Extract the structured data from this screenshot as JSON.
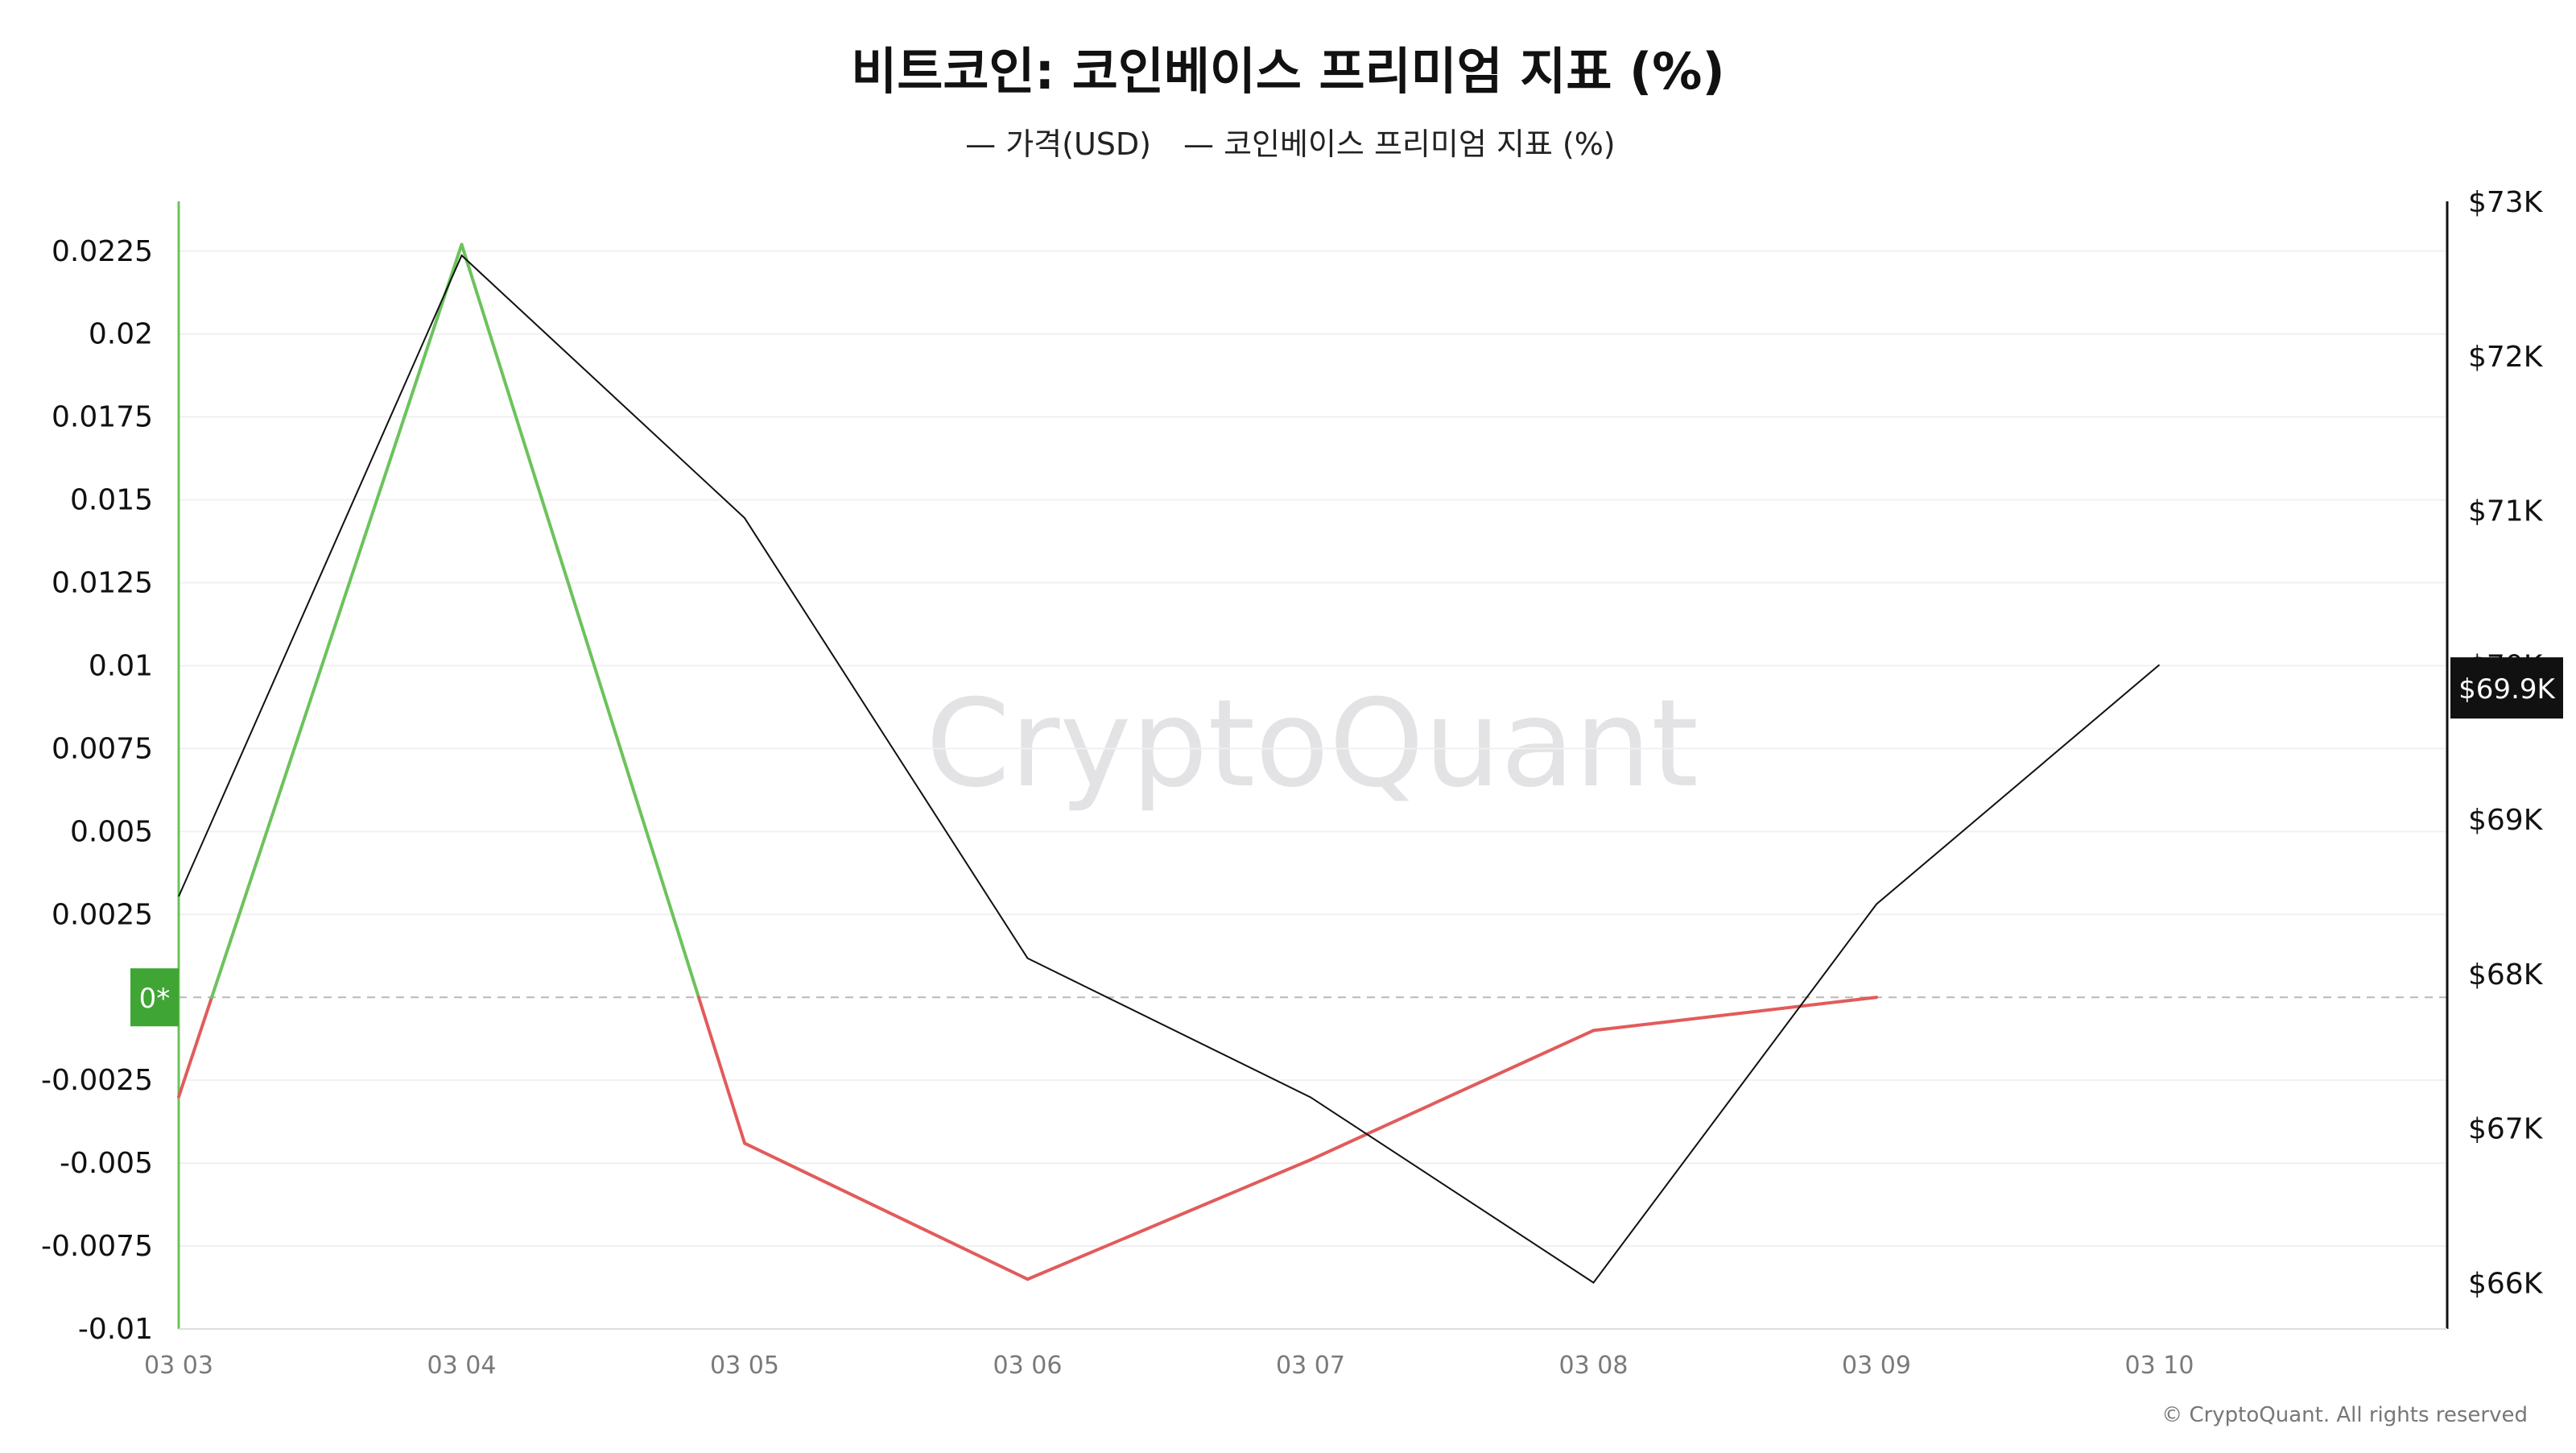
{
  "chart_data": {
    "type": "line",
    "title": "비트코인: 코인베이스 프리미엄 지표 (%)",
    "legend": [
      {
        "label": "— 가격(USD)",
        "color": "#111111"
      },
      {
        "label": "— 코인베이스 프리미엄 지표 (%)",
        "color": "#6b6ad6"
      }
    ],
    "legend_position": "top-center",
    "x": [
      "03 03",
      "03 04",
      "03 05",
      "03 06",
      "03 07",
      "03 08",
      "03 09",
      "03 10"
    ],
    "y_left": {
      "ticks": [
        "0.0225",
        "0.02",
        "0.0175",
        "0.015",
        "0.0125",
        "0.01",
        "0.0075",
        "0.005",
        "0.0025",
        "-0.0025",
        "-0.005",
        "-0.0075",
        "-0.01"
      ],
      "range": [
        -0.01,
        0.024
      ],
      "zero_label": "0*",
      "zero_label_color": "#3fa534"
    },
    "y_right": {
      "ticks": [
        "$73K",
        "$72K",
        "$71K",
        "$70K",
        "$69K",
        "$68K",
        "$67K",
        "$66K"
      ],
      "tick_values": [
        73000,
        72000,
        71000,
        70000,
        69000,
        68000,
        67000,
        66000
      ],
      "range": [
        65700,
        73000
      ],
      "current_label": "$69.9K",
      "current_value": 69850
    },
    "series": [
      {
        "name": "가격(USD)",
        "axis": "right",
        "color": "#111111",
        "values": [
          68500,
          72650,
          70950,
          68100,
          67200,
          66000,
          68450,
          70000
        ]
      },
      {
        "name": "코인베이스 프리미엄 지표 (%)",
        "axis": "left",
        "positive_color": "#6cc35b",
        "negative_color": "#e25b5b",
        "values": [
          -0.003,
          0.0227,
          -0.0044,
          -0.0085,
          -0.0049,
          -0.001,
          0.0,
          null
        ]
      }
    ],
    "grid": true,
    "watermark": "CryptoQuant",
    "copyright": "© CryptoQuant. All rights reserved",
    "colors": {
      "grid": "#f0f0f0",
      "zero_line": "#b9b9b9",
      "axis": "#111111",
      "tick_text": "#7a7a7a"
    }
  }
}
